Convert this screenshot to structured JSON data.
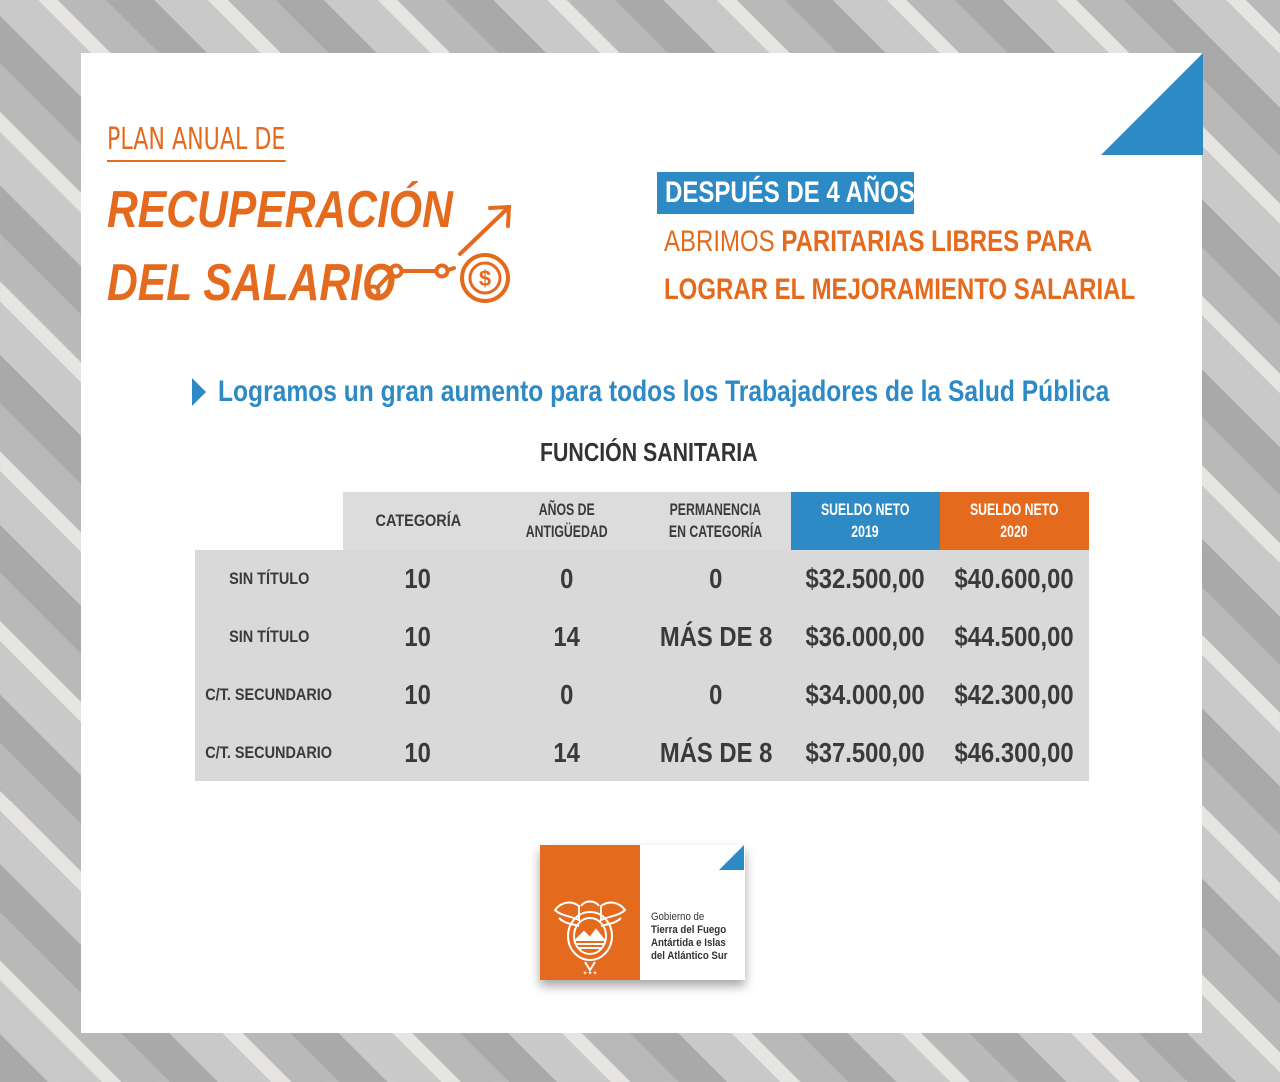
{
  "header": {
    "plan_line": "PLAN ANUAL DE",
    "title_line1": "RECUPERACIÓN",
    "title_line2": "DEL SALARIO"
  },
  "message": {
    "highlight": "DESPUÉS DE 4 AÑOS",
    "line1_light": "ABRIMOS ",
    "line1_bold": "PARITARIAS LIBRES PARA",
    "line2": "LOGRAR EL MEJORAMIENTO SALARIAL"
  },
  "subtitle": "Logramos un gran aumento para todos los Trabajadores de la Salud Pública",
  "table": {
    "title": "FUNCIÓN SANITARIA",
    "headers": {
      "categoria": "CATEGORÍA",
      "antiguedad_l1": "AÑOS DE",
      "antiguedad_l2": "ANTIGÜEDAD",
      "permanencia_l1": "PERMANENCIA",
      "permanencia_l2": "EN CATEGORÍA",
      "sueldo2019_l1": "SUELDO NETO",
      "sueldo2019_l2": "2019",
      "sueldo2020_l1": "SUELDO NETO",
      "sueldo2020_l2": "2020"
    },
    "rows": [
      {
        "label": "SIN TÍTULO",
        "categoria": "10",
        "antiguedad": "0",
        "permanencia": "0",
        "sueldo_2019": "$32.500,00",
        "sueldo_2020": "$40.600,00"
      },
      {
        "label": "SIN TÍTULO",
        "categoria": "10",
        "antiguedad": "14",
        "permanencia": "MÁS DE 8",
        "sueldo_2019": "$36.000,00",
        "sueldo_2020": "$44.500,00"
      },
      {
        "label": "C/T. SECUNDARIO",
        "categoria": "10",
        "antiguedad": "0",
        "permanencia": "0",
        "sueldo_2019": "$34.000,00",
        "sueldo_2020": "$42.300,00"
      },
      {
        "label": "C/T. SECUNDARIO",
        "categoria": "10",
        "antiguedad": "14",
        "permanencia": "MÁS DE 8",
        "sueldo_2019": "$37.500,00",
        "sueldo_2020": "$46.300,00"
      }
    ]
  },
  "logo": {
    "line1": "Gobierno de",
    "line2": "Tierra del Fuego",
    "line3": "Antártida e Islas",
    "line4": "del Atlántico Sur"
  },
  "colors": {
    "orange": "#e46a1e",
    "blue": "#2e8ac5",
    "table_gray": "#d9d9d9"
  },
  "icons": [
    "growth-arrow-icon",
    "dollar-coin-icon",
    "play-triangle-icon",
    "provincial-seal-icon"
  ]
}
